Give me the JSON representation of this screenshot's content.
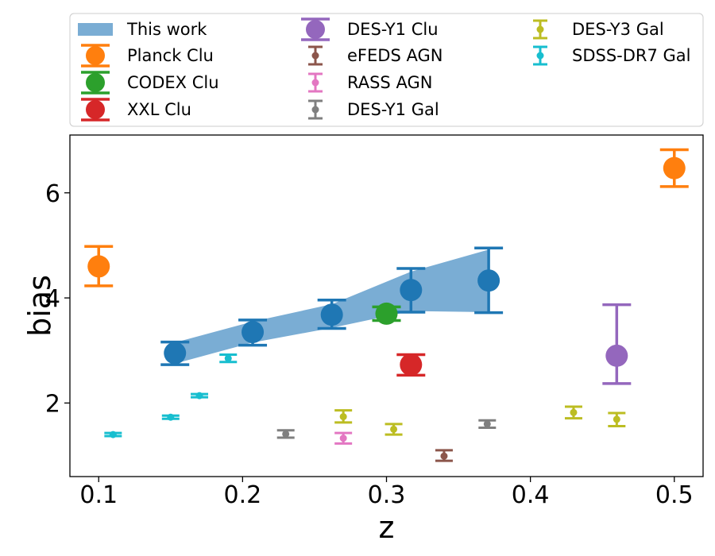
{
  "chart_data": {
    "type": "scatter",
    "xlabel": "z",
    "ylabel": "bias",
    "xlim": [
      0.08,
      0.52
    ],
    "ylim": [
      0.6,
      7.1
    ],
    "xticks": [
      0.1,
      0.2,
      0.3,
      0.4,
      0.5
    ],
    "xtick_labels": [
      "0.1",
      "0.2",
      "0.3",
      "0.4",
      "0.5"
    ],
    "yticks": [
      2,
      4,
      6
    ],
    "ytick_labels": [
      "2",
      "4",
      "6"
    ],
    "legend_position": "top (outside plot)",
    "band": {
      "name": "This work",
      "color": "#7aadd4",
      "x": [
        0.153,
        0.207,
        0.262,
        0.317,
        0.371
      ],
      "lower": [
        2.75,
        3.15,
        3.43,
        3.75,
        3.73
      ],
      "upper": [
        3.15,
        3.55,
        3.88,
        4.5,
        4.92
      ]
    },
    "series": [
      {
        "name": "This work (points)",
        "legend": false,
        "color": "#1f77b4",
        "marker": "large",
        "x": [
          0.153,
          0.207,
          0.262,
          0.317,
          0.371
        ],
        "y": [
          2.95,
          3.35,
          3.68,
          4.15,
          4.33
        ],
        "ylow": [
          2.73,
          3.1,
          3.42,
          3.73,
          3.72
        ],
        "yhigh": [
          3.16,
          3.58,
          3.96,
          4.56,
          4.95
        ]
      },
      {
        "name": "Planck Clu",
        "color": "#ff7f0e",
        "marker": "large",
        "x": [
          0.1,
          0.5
        ],
        "y": [
          4.6,
          6.47
        ],
        "ylow": [
          4.23,
          6.12
        ],
        "yhigh": [
          4.98,
          6.82
        ]
      },
      {
        "name": "CODEX Clu",
        "color": "#2ca02c",
        "marker": "large",
        "x": [
          0.3
        ],
        "y": [
          3.7
        ],
        "ylow": [
          3.57
        ],
        "yhigh": [
          3.83
        ]
      },
      {
        "name": "XXL Clu",
        "color": "#d62728",
        "marker": "large",
        "x": [
          0.317
        ],
        "y": [
          2.73
        ],
        "ylow": [
          2.53
        ],
        "yhigh": [
          2.92
        ]
      },
      {
        "name": "DES-Y1 Clu",
        "color": "#9467bd",
        "marker": "large",
        "x": [
          0.46
        ],
        "y": [
          2.9
        ],
        "ylow": [
          2.37
        ],
        "yhigh": [
          3.87
        ]
      },
      {
        "name": "eFEDS AGN",
        "color": "#8c564b",
        "marker": "small",
        "x": [
          0.34
        ],
        "y": [
          0.99
        ],
        "ylow": [
          0.9
        ],
        "yhigh": [
          1.1
        ]
      },
      {
        "name": "RASS AGN",
        "color": "#e377c2",
        "marker": "small",
        "x": [
          0.27
        ],
        "y": [
          1.33
        ],
        "ylow": [
          1.23
        ],
        "yhigh": [
          1.43
        ]
      },
      {
        "name": "DES-Y1 Gal",
        "color": "#7f7f7f",
        "marker": "small",
        "x": [
          0.23,
          0.37
        ],
        "y": [
          1.41,
          1.6
        ],
        "ylow": [
          1.34,
          1.53
        ],
        "yhigh": [
          1.48,
          1.67
        ]
      },
      {
        "name": "DES-Y3 Gal",
        "color": "#bcbd22",
        "marker": "small",
        "x": [
          0.27,
          0.305,
          0.43,
          0.46
        ],
        "y": [
          1.74,
          1.5,
          1.82,
          1.69
        ],
        "ylow": [
          1.63,
          1.4,
          1.71,
          1.56
        ],
        "yhigh": [
          1.86,
          1.6,
          1.93,
          1.81
        ]
      },
      {
        "name": "SDSS-DR7 Gal",
        "color": "#17becf",
        "marker": "small",
        "x": [
          0.11,
          0.15,
          0.17,
          0.19
        ],
        "y": [
          1.4,
          1.73,
          2.14,
          2.85
        ],
        "ylow": [
          1.37,
          1.7,
          2.11,
          2.78
        ],
        "yhigh": [
          1.43,
          1.76,
          2.17,
          2.92
        ]
      }
    ]
  }
}
